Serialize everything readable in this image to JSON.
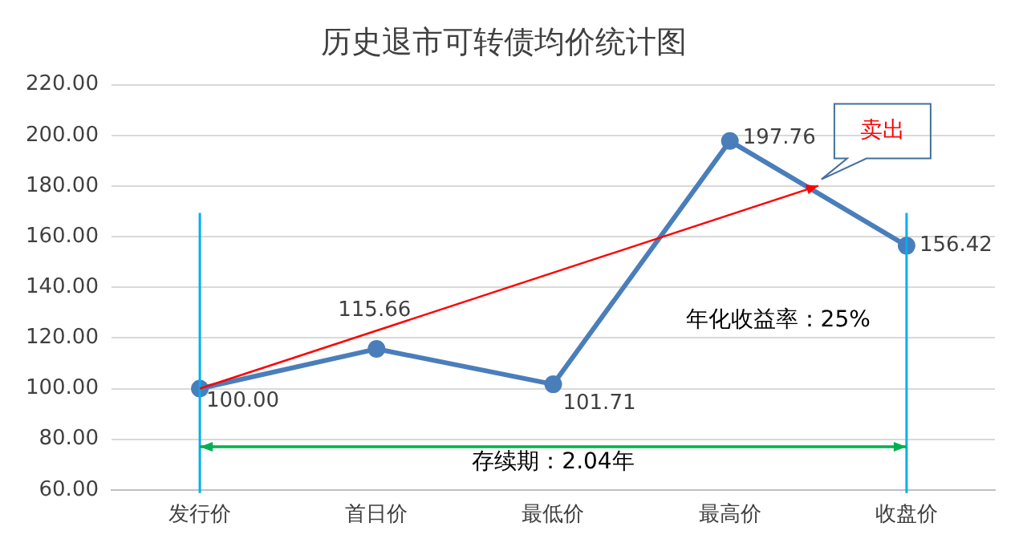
{
  "chart_data": {
    "type": "line",
    "title": "历史退市可转债均价统计图",
    "categories": [
      "发行价",
      "首日价",
      "最低价",
      "最高价",
      "收盘价"
    ],
    "series": [
      {
        "color": "#4a7ebb",
        "values": [
          100,
          115.66,
          101.71,
          197.76,
          156.42
        ],
        "value_labels": [
          "100.00",
          "115.66",
          "101.71",
          "197.76",
          "156.42"
        ]
      }
    ],
    "ylim": [
      60,
      220
    ],
    "yticks": [
      {
        "value": 60,
        "label": "60.00"
      },
      {
        "value": 80,
        "label": "80.00"
      },
      {
        "value": 100,
        "label": "100.00"
      },
      {
        "value": 120,
        "label": "120.00"
      },
      {
        "value": 140,
        "label": "140.00"
      },
      {
        "value": 160,
        "label": "160.00"
      },
      {
        "value": 180,
        "label": "180.00"
      },
      {
        "value": 200,
        "label": "200.00"
      },
      {
        "value": 220,
        "label": "220.00"
      }
    ],
    "grid": "y",
    "legend": false,
    "marker": "circle",
    "line_style": "solid",
    "ref_lines": [
      {
        "axis": "x",
        "value": "发行价",
        "color": "#00b0f0"
      },
      {
        "axis": "x",
        "value": "收盘价",
        "color": "#00b0f0"
      },
      {
        "axis": "y",
        "value": 77,
        "label": "存续期：2.04年",
        "color": "#00b050"
      }
    ],
    "annotations": [
      "卖出",
      "年化收益率：25%"
    ]
  }
}
